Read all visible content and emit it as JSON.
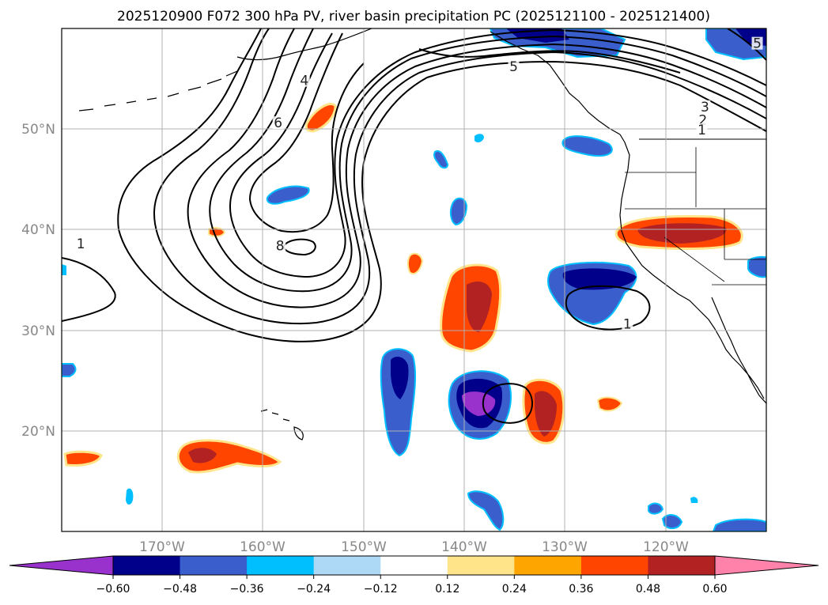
{
  "title": "2025120900 F072 300 hPa PV, river basin precipitation PC (2025121100 - 2025121400)",
  "map": {
    "lon_range": [
      -180,
      -110
    ],
    "lat_range": [
      10,
      60
    ],
    "gridlines": true,
    "lat_ticks": [
      {
        "value": 50,
        "label": "50°N"
      },
      {
        "value": 40,
        "label": "40°N"
      },
      {
        "value": 30,
        "label": "30°N"
      },
      {
        "value": 20,
        "label": "20°N"
      }
    ],
    "lon_ticks": [
      {
        "value": -170,
        "label": "170°W"
      },
      {
        "value": -160,
        "label": "160°W"
      },
      {
        "value": -150,
        "label": "150°W"
      },
      {
        "value": -140,
        "label": "140°W"
      },
      {
        "value": -130,
        "label": "130°W"
      },
      {
        "value": -120,
        "label": "120°W"
      }
    ],
    "pv_contour_labels": [
      {
        "text": "1",
        "lon": -178.1,
        "lat": 38.4
      },
      {
        "text": "4",
        "lon": -155.9,
        "lat": 54.6
      },
      {
        "text": "6",
        "lon": -158.5,
        "lat": 50.4
      },
      {
        "text": "5",
        "lon": -135.1,
        "lat": 56.0
      },
      {
        "text": "3",
        "lon": -116.1,
        "lat": 52.0
      },
      {
        "text": "2",
        "lon": -116.3,
        "lat": 50.7
      },
      {
        "text": "1",
        "lon": -116.4,
        "lat": 49.7
      },
      {
        "text": "8",
        "lon": -158.3,
        "lat": 38.2
      },
      {
        "text": "1",
        "lon": -123.8,
        "lat": 30.4
      },
      {
        "text": "5",
        "lon": -110.9,
        "lat": 58.3
      }
    ]
  },
  "colorbar": {
    "ticks": [
      "−0.60",
      "−0.48",
      "−0.36",
      "−0.24",
      "−0.12",
      "0.12",
      "0.24",
      "0.36",
      "0.48",
      "0.60"
    ],
    "colors": [
      "#9932cc",
      "#00008b",
      "#3a5fcd",
      "#00bfff",
      "#add8f6",
      "#ffffff",
      "#ffe48a",
      "#ffa500",
      "#ff4500",
      "#b22222",
      "#ff82ab"
    ]
  }
}
